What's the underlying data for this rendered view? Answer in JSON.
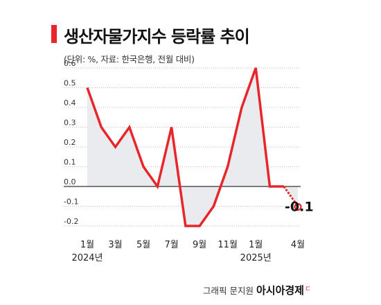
{
  "header": {
    "title": "생산자물가지수 등락률 추이",
    "subtitle": "(단위: %, 자료: 한국은행, 전월 대비)"
  },
  "footer": {
    "credit": "그래픽 문지원",
    "brand": "아시아경제",
    "brand_mark": "ㄷ"
  },
  "colors": {
    "line": "#e8262a",
    "fill": "#e9ebef",
    "zero_line": "#333333",
    "grid": "#a8a8a8"
  },
  "chart_data": {
    "type": "area",
    "x": [
      "2024-01",
      "2024-02",
      "2024-03",
      "2024-04",
      "2024-05",
      "2024-06",
      "2024-07",
      "2024-08",
      "2024-09",
      "2024-10",
      "2024-11",
      "2024-12",
      "2025-01",
      "2025-02",
      "2025-03",
      "2025-04"
    ],
    "series": [
      {
        "values": [
          0.5,
          0.3,
          0.2,
          0.3,
          0.1,
          0.0,
          0.3,
          -0.2,
          -0.2,
          -0.1,
          0.1,
          0.4,
          0.6,
          0.0,
          0.0,
          -0.1
        ]
      }
    ],
    "ylim": [
      -0.2,
      0.6
    ],
    "yticks": [
      "0.6",
      "0.5",
      "0.4",
      "0.3",
      "0.2",
      "0.1",
      "0.0",
      "-0.1",
      "-0.2"
    ],
    "xtick_labels": [
      {
        "index": 0,
        "label": "1월",
        "year": "2024년"
      },
      {
        "index": 2,
        "label": "3월"
      },
      {
        "index": 4,
        "label": "5월"
      },
      {
        "index": 6,
        "label": "7월"
      },
      {
        "index": 8,
        "label": "9월"
      },
      {
        "index": 10,
        "label": "11월"
      },
      {
        "index": 12,
        "label": "1월",
        "year": "2025년"
      },
      {
        "index": 15,
        "label": "4월"
      }
    ],
    "last_value_label": "-0.1",
    "grid": true,
    "legend": "none"
  }
}
